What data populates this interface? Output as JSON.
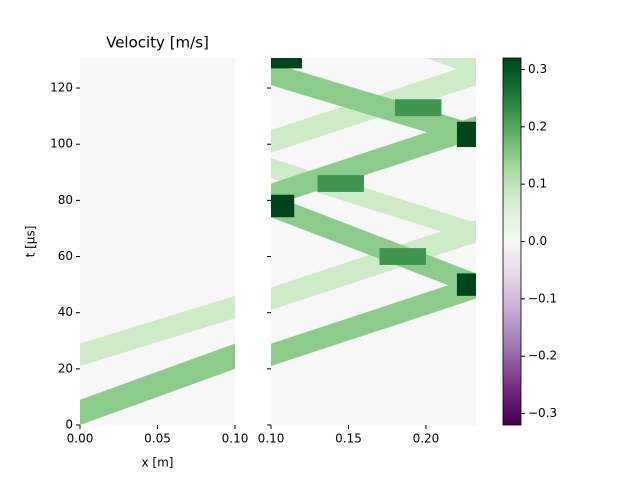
{
  "chart_data": [
    {
      "type": "heatmap",
      "title": "Velocity [m/s]",
      "xlabel": "x [m]",
      "ylabel": "t [μs]",
      "xlim": [
        0,
        0.1
      ],
      "ylim": [
        0,
        130.7
      ],
      "xticks": [
        {
          "value": 0,
          "label": "0.00"
        },
        {
          "value": 0.05,
          "label": "0.05"
        },
        {
          "value": 0.1,
          "label": "0.10"
        }
      ],
      "yticks": [
        0,
        20,
        40,
        60,
        80,
        100,
        120
      ],
      "background": 0,
      "bands": [
        {
          "x": [
            0,
            0.1
          ],
          "t_low": [
            21,
            38
          ],
          "t_high": [
            29,
            46
          ],
          "value": 0.08
        },
        {
          "x": [
            0,
            0.1
          ],
          "t_low": [
            0,
            20
          ],
          "t_high": [
            9,
            29
          ],
          "value": 0.15
        }
      ],
      "patches": []
    },
    {
      "type": "heatmap",
      "xlim": [
        0.1,
        0.2323
      ],
      "ylim": [
        0,
        130.7
      ],
      "xticks": [
        {
          "value": 0.1,
          "label": "0.10"
        },
        {
          "value": 0.15,
          "label": "0.15"
        },
        {
          "value": 0.2,
          "label": "0.20"
        }
      ],
      "yticks": [
        0,
        20,
        40,
        60,
        80,
        100,
        120
      ],
      "background": 0,
      "bands": [
        {
          "x": [
            0.1,
            0.2323
          ],
          "t_low": [
            41,
            65
          ],
          "t_high": [
            49,
            73
          ],
          "value": 0.08
        },
        {
          "x": [
            0.1,
            0.2323
          ],
          "t_low": [
            97,
            121
          ],
          "t_high": [
            105,
            129
          ],
          "value": 0.08
        },
        {
          "x": [
            0.1,
            0.2323
          ],
          "t_low": [
            88,
            65
          ],
          "t_high": [
            95,
            72
          ],
          "value": 0.08
        },
        {
          "x": [
            0.1,
            0.2323
          ],
          "t_low": [
            152,
            124
          ],
          "t_high": [
            160,
            131
          ],
          "value": 0.08
        },
        {
          "x": [
            0.1,
            0.2323
          ],
          "t_low": [
            21,
            45
          ],
          "t_high": [
            29,
            53
          ],
          "value": 0.15
        },
        {
          "x": [
            0.1,
            0.2323
          ],
          "t_low": [
            78,
            102
          ],
          "t_high": [
            86,
            110
          ],
          "value": 0.15
        },
        {
          "x": [
            0.1,
            0.2323
          ],
          "t_low": [
            74,
            46
          ],
          "t_high": [
            82,
            54
          ],
          "value": 0.15
        },
        {
          "x": [
            0.1,
            0.2323
          ],
          "t_low": [
            121,
            99
          ],
          "t_high": [
            129,
            107
          ],
          "value": 0.15
        }
      ],
      "patches": [
        {
          "x": [
            0.13,
            0.16
          ],
          "t": [
            83,
            89
          ],
          "value": 0.22
        },
        {
          "x": [
            0.17,
            0.2
          ],
          "t": [
            57,
            63
          ],
          "value": 0.22
        },
        {
          "x": [
            0.18,
            0.21
          ],
          "t": [
            110,
            116
          ],
          "value": 0.22
        },
        {
          "x": [
            0.1,
            0.115
          ],
          "t": [
            74,
            82
          ],
          "value": 0.32
        },
        {
          "x": [
            0.22,
            0.2323
          ],
          "t": [
            46,
            54
          ],
          "value": 0.32
        },
        {
          "x": [
            0.22,
            0.2323
          ],
          "t": [
            99,
            108
          ],
          "value": 0.32
        },
        {
          "x": [
            0.1,
            0.12
          ],
          "t": [
            127,
            131
          ],
          "value": 0.32
        }
      ],
      "colorbar": {
        "lim": [
          -0.32,
          0.32
        ],
        "ticks": [
          {
            "value": -0.3,
            "label": "−0.3"
          },
          {
            "value": -0.2,
            "label": "−0.2"
          },
          {
            "value": -0.1,
            "label": "−0.1"
          },
          {
            "value": 0,
            "label": "0.0"
          },
          0.1,
          0.2,
          0.3
        ],
        "colormap_colors": [
          "#40004b",
          "#762a83",
          "#9970ab",
          "#c2a5cf",
          "#e7d4e8",
          "#f7f7f7",
          "#d9f0d3",
          "#a6dba0",
          "#5aae61",
          "#1b7837",
          "#00441b"
        ]
      }
    }
  ]
}
